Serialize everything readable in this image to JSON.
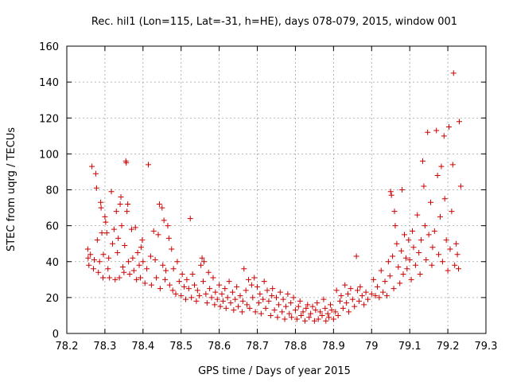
{
  "chart_data": {
    "type": "scatter",
    "title": "Rec. hil1 (Lon=115, Lat=-31, h=HE), days 078-079, 2015, window 001",
    "xlabel": "GPS time / Days of year 2015",
    "ylabel": "STEC from uqrg / TECUs",
    "xlim": [
      78.2,
      79.3
    ],
    "ylim": [
      0,
      160
    ],
    "xticks": [
      "78.2",
      "78.3",
      "78.4",
      "78.5",
      "78.6",
      "78.7",
      "78.8",
      "78.9",
      "79",
      "79.1",
      "79.2",
      "79.3"
    ],
    "yticks": [
      "0",
      "20",
      "40",
      "60",
      "80",
      "100",
      "120",
      "140",
      "160"
    ],
    "grid": true,
    "marker": "+",
    "color": "#cc0000",
    "series": [
      {
        "points": [
          [
            78.255,
            47
          ],
          [
            78.256,
            42
          ],
          [
            78.258,
            38
          ],
          [
            78.262,
            44
          ],
          [
            78.266,
            93
          ],
          [
            78.27,
            36
          ],
          [
            78.272,
            41
          ],
          [
            78.276,
            89
          ],
          [
            78.278,
            81
          ],
          [
            78.28,
            52
          ],
          [
            78.283,
            34
          ],
          [
            78.286,
            40
          ],
          [
            78.289,
            73
          ],
          [
            78.29,
            70
          ],
          [
            78.292,
            56
          ],
          [
            78.295,
            31
          ],
          [
            78.296,
            44
          ],
          [
            78.3,
            65
          ],
          [
            78.302,
            62
          ],
          [
            78.305,
            56
          ],
          [
            78.308,
            36
          ],
          [
            78.31,
            42
          ],
          [
            78.312,
            31
          ],
          [
            78.317,
            79
          ],
          [
            78.32,
            50
          ],
          [
            78.324,
            58
          ],
          [
            78.327,
            30
          ],
          [
            78.33,
            68
          ],
          [
            78.333,
            45
          ],
          [
            78.335,
            53
          ],
          [
            78.338,
            31
          ],
          [
            78.34,
            72
          ],
          [
            78.342,
            76
          ],
          [
            78.344,
            60
          ],
          [
            78.347,
            37
          ],
          [
            78.35,
            34
          ],
          [
            78.352,
            49
          ],
          [
            78.355,
            96
          ],
          [
            78.356,
            95
          ],
          [
            78.358,
            68
          ],
          [
            78.36,
            72
          ],
          [
            78.362,
            40
          ],
          [
            78.365,
            33
          ],
          [
            78.37,
            58
          ],
          [
            78.373,
            42
          ],
          [
            78.376,
            35
          ],
          [
            78.38,
            59
          ],
          [
            78.383,
            30
          ],
          [
            78.386,
            45
          ],
          [
            78.39,
            38
          ],
          [
            78.393,
            31
          ],
          [
            78.395,
            48
          ],
          [
            78.398,
            52
          ],
          [
            78.4,
            40
          ],
          [
            78.405,
            28
          ],
          [
            78.41,
            36
          ],
          [
            78.414,
            94
          ],
          [
            78.42,
            43
          ],
          [
            78.422,
            27
          ],
          [
            78.428,
            57
          ],
          [
            78.432,
            41
          ],
          [
            78.435,
            31
          ],
          [
            78.44,
            55
          ],
          [
            78.443,
            72
          ],
          [
            78.445,
            25
          ],
          [
            78.45,
            70
          ],
          [
            78.452,
            38
          ],
          [
            78.455,
            63
          ],
          [
            78.458,
            30
          ],
          [
            78.46,
            35
          ],
          [
            78.465,
            60
          ],
          [
            78.468,
            53
          ],
          [
            78.47,
            27
          ],
          [
            78.475,
            47
          ],
          [
            78.478,
            24
          ],
          [
            78.48,
            36
          ],
          [
            78.486,
            22
          ],
          [
            78.49,
            40
          ],
          [
            78.495,
            29
          ],
          [
            78.5,
            21
          ],
          [
            78.503,
            33
          ],
          [
            78.508,
            26
          ],
          [
            78.512,
            19
          ],
          [
            78.515,
            30
          ],
          [
            78.52,
            25
          ],
          [
            78.524,
            64
          ],
          [
            78.527,
            20
          ],
          [
            78.53,
            33
          ],
          [
            78.535,
            27
          ],
          [
            78.54,
            18
          ],
          [
            78.543,
            24
          ],
          [
            78.548,
            21
          ],
          [
            78.552,
            38
          ],
          [
            78.555,
            42
          ],
          [
            78.558,
            29
          ],
          [
            78.56,
            40
          ],
          [
            78.565,
            22
          ],
          [
            78.568,
            17
          ],
          [
            78.572,
            34
          ],
          [
            78.575,
            25
          ],
          [
            78.58,
            20
          ],
          [
            78.584,
            31
          ],
          [
            78.588,
            16
          ],
          [
            78.59,
            23
          ],
          [
            78.595,
            19
          ],
          [
            78.6,
            27
          ],
          [
            78.603,
            15
          ],
          [
            78.607,
            22
          ],
          [
            78.61,
            18
          ],
          [
            78.615,
            25
          ],
          [
            78.618,
            14
          ],
          [
            78.622,
            20
          ],
          [
            78.626,
            29
          ],
          [
            78.63,
            17
          ],
          [
            78.635,
            23
          ],
          [
            78.638,
            13
          ],
          [
            78.642,
            19
          ],
          [
            78.646,
            26
          ],
          [
            78.65,
            15
          ],
          [
            78.655,
            21
          ],
          [
            78.66,
            12
          ],
          [
            78.662,
            18
          ],
          [
            78.665,
            36
          ],
          [
            78.67,
            24
          ],
          [
            78.673,
            16
          ],
          [
            78.677,
            30
          ],
          [
            78.68,
            14
          ],
          [
            78.685,
            27
          ],
          [
            78.688,
            20
          ],
          [
            78.692,
            31
          ],
          [
            78.695,
            12
          ],
          [
            78.7,
            26
          ],
          [
            78.704,
            17
          ],
          [
            78.707,
            22
          ],
          [
            78.71,
            11
          ],
          [
            78.715,
            19
          ],
          [
            78.718,
            29
          ],
          [
            78.722,
            14
          ],
          [
            78.726,
            24
          ],
          [
            78.73,
            18
          ],
          [
            78.735,
            10
          ],
          [
            78.738,
            21
          ],
          [
            78.74,
            25
          ],
          [
            78.745,
            13
          ],
          [
            78.75,
            20
          ],
          [
            78.753,
            9
          ],
          [
            78.756,
            16
          ],
          [
            78.76,
            23
          ],
          [
            78.765,
            12
          ],
          [
            78.768,
            19
          ],
          [
            78.772,
            8
          ],
          [
            78.775,
            15
          ],
          [
            78.78,
            22
          ],
          [
            78.784,
            11
          ],
          [
            78.788,
            17
          ],
          [
            78.79,
            9
          ],
          [
            78.795,
            20
          ],
          [
            78.8,
            13
          ],
          [
            78.804,
            8
          ],
          [
            78.808,
            15
          ],
          [
            78.812,
            18
          ],
          [
            78.815,
            10
          ],
          [
            78.82,
            12
          ],
          [
            78.825,
            7
          ],
          [
            78.828,
            14
          ],
          [
            78.832,
            16
          ],
          [
            78.836,
            9
          ],
          [
            78.84,
            11
          ],
          [
            78.845,
            15
          ],
          [
            78.85,
            7
          ],
          [
            78.853,
            13
          ],
          [
            78.857,
            17
          ],
          [
            78.86,
            8
          ],
          [
            78.865,
            12
          ],
          [
            78.87,
            10
          ],
          [
            78.874,
            19
          ],
          [
            78.878,
            14
          ],
          [
            78.88,
            7
          ],
          [
            78.885,
            11
          ],
          [
            78.888,
            9
          ],
          [
            78.892,
            16
          ],
          [
            78.895,
            13
          ],
          [
            78.9,
            8
          ],
          [
            78.905,
            12
          ],
          [
            78.908,
            24
          ],
          [
            78.912,
            10
          ],
          [
            78.917,
            18
          ],
          [
            78.92,
            21
          ],
          [
            78.925,
            14
          ],
          [
            78.93,
            27
          ],
          [
            78.934,
            17
          ],
          [
            78.938,
            22
          ],
          [
            78.94,
            12
          ],
          [
            78.945,
            25
          ],
          [
            78.95,
            19
          ],
          [
            78.955,
            15
          ],
          [
            78.96,
            43
          ],
          [
            78.963,
            24
          ],
          [
            78.967,
            18
          ],
          [
            78.97,
            26
          ],
          [
            78.975,
            21
          ],
          [
            78.98,
            16
          ],
          [
            78.985,
            23
          ],
          [
            78.99,
            19
          ],
          [
            79.0,
            22
          ],
          [
            79.005,
            30
          ],
          [
            79.01,
            21
          ],
          [
            79.015,
            26
          ],
          [
            79.02,
            20
          ],
          [
            79.025,
            35
          ],
          [
            79.03,
            23
          ],
          [
            79.035,
            29
          ],
          [
            79.04,
            21
          ],
          [
            79.044,
            40
          ],
          [
            79.048,
            32
          ],
          [
            79.05,
            79
          ],
          [
            79.052,
            77
          ],
          [
            79.055,
            43
          ],
          [
            79.058,
            25
          ],
          [
            79.06,
            68
          ],
          [
            79.062,
            60
          ],
          [
            79.066,
            50
          ],
          [
            79.07,
            37
          ],
          [
            79.074,
            28
          ],
          [
            79.078,
            46
          ],
          [
            79.08,
            80
          ],
          [
            79.083,
            33
          ],
          [
            79.086,
            55
          ],
          [
            79.09,
            42
          ],
          [
            79.093,
            36
          ],
          [
            79.097,
            52
          ],
          [
            79.1,
            41
          ],
          [
            79.104,
            30
          ],
          [
            79.107,
            57
          ],
          [
            79.11,
            48
          ],
          [
            79.115,
            38
          ],
          [
            79.12,
            66
          ],
          [
            79.124,
            45
          ],
          [
            79.127,
            33
          ],
          [
            79.13,
            52
          ],
          [
            79.134,
            96
          ],
          [
            79.137,
            82
          ],
          [
            79.14,
            60
          ],
          [
            79.143,
            41
          ],
          [
            79.147,
            112
          ],
          [
            79.15,
            55
          ],
          [
            79.155,
            73
          ],
          [
            79.158,
            38
          ],
          [
            79.16,
            48
          ],
          [
            79.165,
            57
          ],
          [
            79.17,
            113
          ],
          [
            79.173,
            88
          ],
          [
            79.176,
            44
          ],
          [
            79.18,
            65
          ],
          [
            79.183,
            93
          ],
          [
            79.186,
            40
          ],
          [
            79.19,
            110
          ],
          [
            79.192,
            75
          ],
          [
            79.196,
            52
          ],
          [
            79.2,
            35
          ],
          [
            79.203,
            115
          ],
          [
            79.206,
            47
          ],
          [
            79.21,
            68
          ],
          [
            79.213,
            94
          ],
          [
            79.215,
            145
          ],
          [
            79.218,
            38
          ],
          [
            79.222,
            50
          ],
          [
            79.225,
            44
          ],
          [
            79.228,
            36
          ],
          [
            79.23,
            118
          ],
          [
            79.234,
            82
          ]
        ]
      }
    ]
  }
}
